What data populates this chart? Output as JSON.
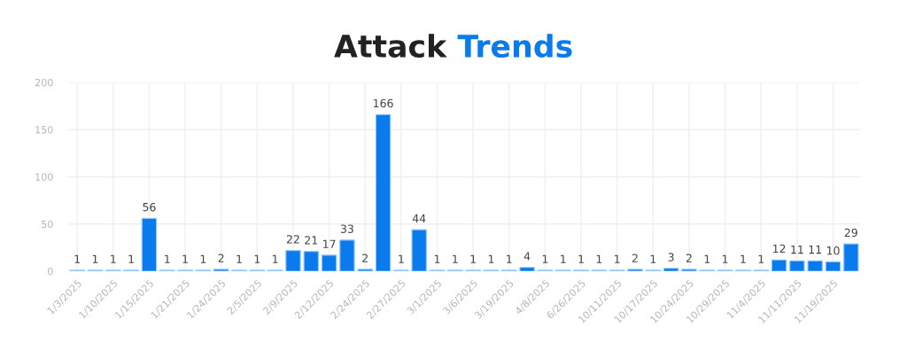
{
  "chart_data": {
    "type": "bar",
    "title": "Attack Trends",
    "categories": [
      "1/3/2025",
      null,
      "1/10/2025",
      null,
      "1/15/2025",
      null,
      "1/21/2025",
      null,
      "1/24/2025",
      null,
      "2/5/2025",
      null,
      "2/9/2025",
      null,
      "2/12/2025",
      null,
      "2/24/2025",
      null,
      "2/27/2025",
      null,
      "3/1/2025",
      null,
      "3/6/2025",
      null,
      "3/19/2025",
      null,
      "4/8/2025",
      null,
      "6/26/2025",
      null,
      "10/11/2025",
      null,
      "10/17/2025",
      null,
      "10/24/2025",
      null,
      "10/29/2025",
      null,
      "11/4/2025",
      null,
      "11/11/2025",
      null,
      "11/19/2025",
      null
    ],
    "values": [
      1,
      1,
      1,
      1,
      56,
      1,
      1,
      1,
      2,
      1,
      1,
      1,
      22,
      21,
      17,
      33,
      2,
      166,
      1,
      44,
      1,
      1,
      1,
      1,
      1,
      4,
      1,
      1,
      1,
      1,
      1,
      2,
      1,
      3,
      2,
      1,
      1,
      1,
      1,
      12,
      11,
      11,
      10,
      29
    ],
    "color": "#0a7bec",
    "ylim": [
      0,
      200
    ],
    "yticks": [
      0,
      50,
      100,
      150,
      200
    ],
    "grid": true,
    "data_labels": true
  }
}
